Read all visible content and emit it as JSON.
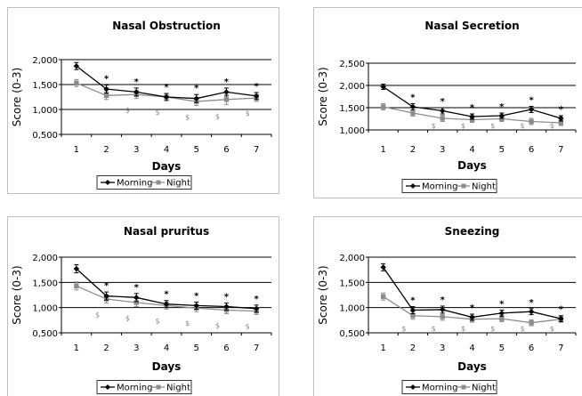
{
  "colors": {
    "morning": "#000000",
    "night": "#8c8c8c",
    "grid": "#000000"
  },
  "chart_data": [
    {
      "type": "line",
      "title": "Nasal Obstruction",
      "xlabel": "Days",
      "ylabel": "Score (0-3)",
      "x": [
        "1",
        "2",
        "3",
        "4",
        "5",
        "6",
        "7"
      ],
      "ylim": [
        0.5,
        2.0
      ],
      "yticks": [
        "0,500",
        "1,000",
        "1,500",
        "2,000"
      ],
      "series": [
        {
          "name": "Morning",
          "values": [
            1.87,
            1.41,
            1.35,
            1.25,
            1.22,
            1.35,
            1.27
          ],
          "err": [
            0.07,
            0.08,
            0.08,
            0.07,
            0.08,
            0.08,
            0.07
          ]
        },
        {
          "name": "Night",
          "values": [
            1.53,
            1.28,
            1.3,
            1.25,
            1.16,
            1.2,
            1.23
          ],
          "err": [
            0.07,
            0.08,
            0.08,
            0.07,
            0.08,
            0.1,
            0.07
          ]
        }
      ],
      "sig_days": [
        2,
        3,
        4,
        5,
        6,
        7
      ],
      "sig_symbol": "*",
      "dollar_days": [
        3,
        4,
        5,
        6,
        7
      ],
      "dollar_symbol": "$",
      "legend": "bottom"
    },
    {
      "type": "line",
      "title": "Nasal Secretion",
      "xlabel": "Days",
      "ylabel": "Score (0-3)",
      "x": [
        "1",
        "2",
        "3",
        "4",
        "5",
        "6",
        "7"
      ],
      "ylim": [
        1.0,
        2.5
      ],
      "yticks": [
        "1,000",
        "1,500",
        "2,000",
        "2,500"
      ],
      "series": [
        {
          "name": "Morning",
          "values": [
            1.97,
            1.52,
            1.43,
            1.3,
            1.32,
            1.46,
            1.26
          ],
          "err": [
            0.06,
            0.07,
            0.07,
            0.06,
            0.06,
            0.07,
            0.06
          ]
        },
        {
          "name": "Night",
          "values": [
            1.52,
            1.38,
            1.26,
            1.23,
            1.25,
            1.19,
            1.16
          ],
          "err": [
            0.07,
            0.07,
            0.07,
            0.06,
            0.06,
            0.07,
            0.06
          ]
        }
      ],
      "sig_days": [
        2,
        3,
        4,
        5,
        6,
        7
      ],
      "sig_symbol": "*",
      "dollar_days": [
        3,
        4,
        5,
        6,
        7
      ],
      "dollar_symbol": "$",
      "legend": "bottom"
    },
    {
      "type": "line",
      "title": "Nasal pruritus",
      "xlabel": "Days",
      "ylabel": "Score (0-3)",
      "x": [
        "1",
        "2",
        "3",
        "4",
        "5",
        "6",
        "7"
      ],
      "ylim": [
        0.5,
        2.0
      ],
      "yticks": [
        "0,500",
        "1,000",
        "1,500",
        "2,000"
      ],
      "series": [
        {
          "name": "Morning",
          "values": [
            1.77,
            1.23,
            1.2,
            1.07,
            1.04,
            1.02,
            0.98
          ],
          "err": [
            0.08,
            0.08,
            0.08,
            0.07,
            0.07,
            0.07,
            0.07
          ]
        },
        {
          "name": "Night",
          "values": [
            1.43,
            1.17,
            1.1,
            1.04,
            0.99,
            0.95,
            0.93
          ],
          "err": [
            0.08,
            0.08,
            0.08,
            0.07,
            0.07,
            0.07,
            0.07
          ]
        }
      ],
      "sig_days": [
        2,
        3,
        4,
        5,
        6,
        7
      ],
      "sig_symbol": "*",
      "dollar_days": [
        2,
        3,
        4,
        5,
        6,
        7
      ],
      "dollar_symbol": "$",
      "legend": "bottom"
    },
    {
      "type": "line",
      "title": "Sneezing",
      "xlabel": "Days",
      "ylabel": "Score (0-3)",
      "x": [
        "1",
        "2",
        "3",
        "4",
        "5",
        "6",
        "7"
      ],
      "ylim": [
        0.5,
        2.0
      ],
      "yticks": [
        "0,500",
        "1,000",
        "1,500",
        "2,000"
      ],
      "series": [
        {
          "name": "Morning",
          "values": [
            1.8,
            0.95,
            0.96,
            0.81,
            0.89,
            0.92,
            0.78
          ],
          "err": [
            0.07,
            0.07,
            0.07,
            0.06,
            0.06,
            0.06,
            0.06
          ]
        },
        {
          "name": "Night",
          "values": [
            1.22,
            0.84,
            0.82,
            0.77,
            0.78,
            0.7,
            0.77
          ],
          "err": [
            0.07,
            0.07,
            0.07,
            0.06,
            0.06,
            0.06,
            0.06
          ]
        }
      ],
      "sig_days": [
        2,
        3,
        4,
        5,
        6,
        7
      ],
      "sig_symbol": "*",
      "dollar_days": [
        2,
        3,
        4,
        5,
        6,
        7
      ],
      "dollar_symbol": "$",
      "legend": "bottom"
    }
  ]
}
